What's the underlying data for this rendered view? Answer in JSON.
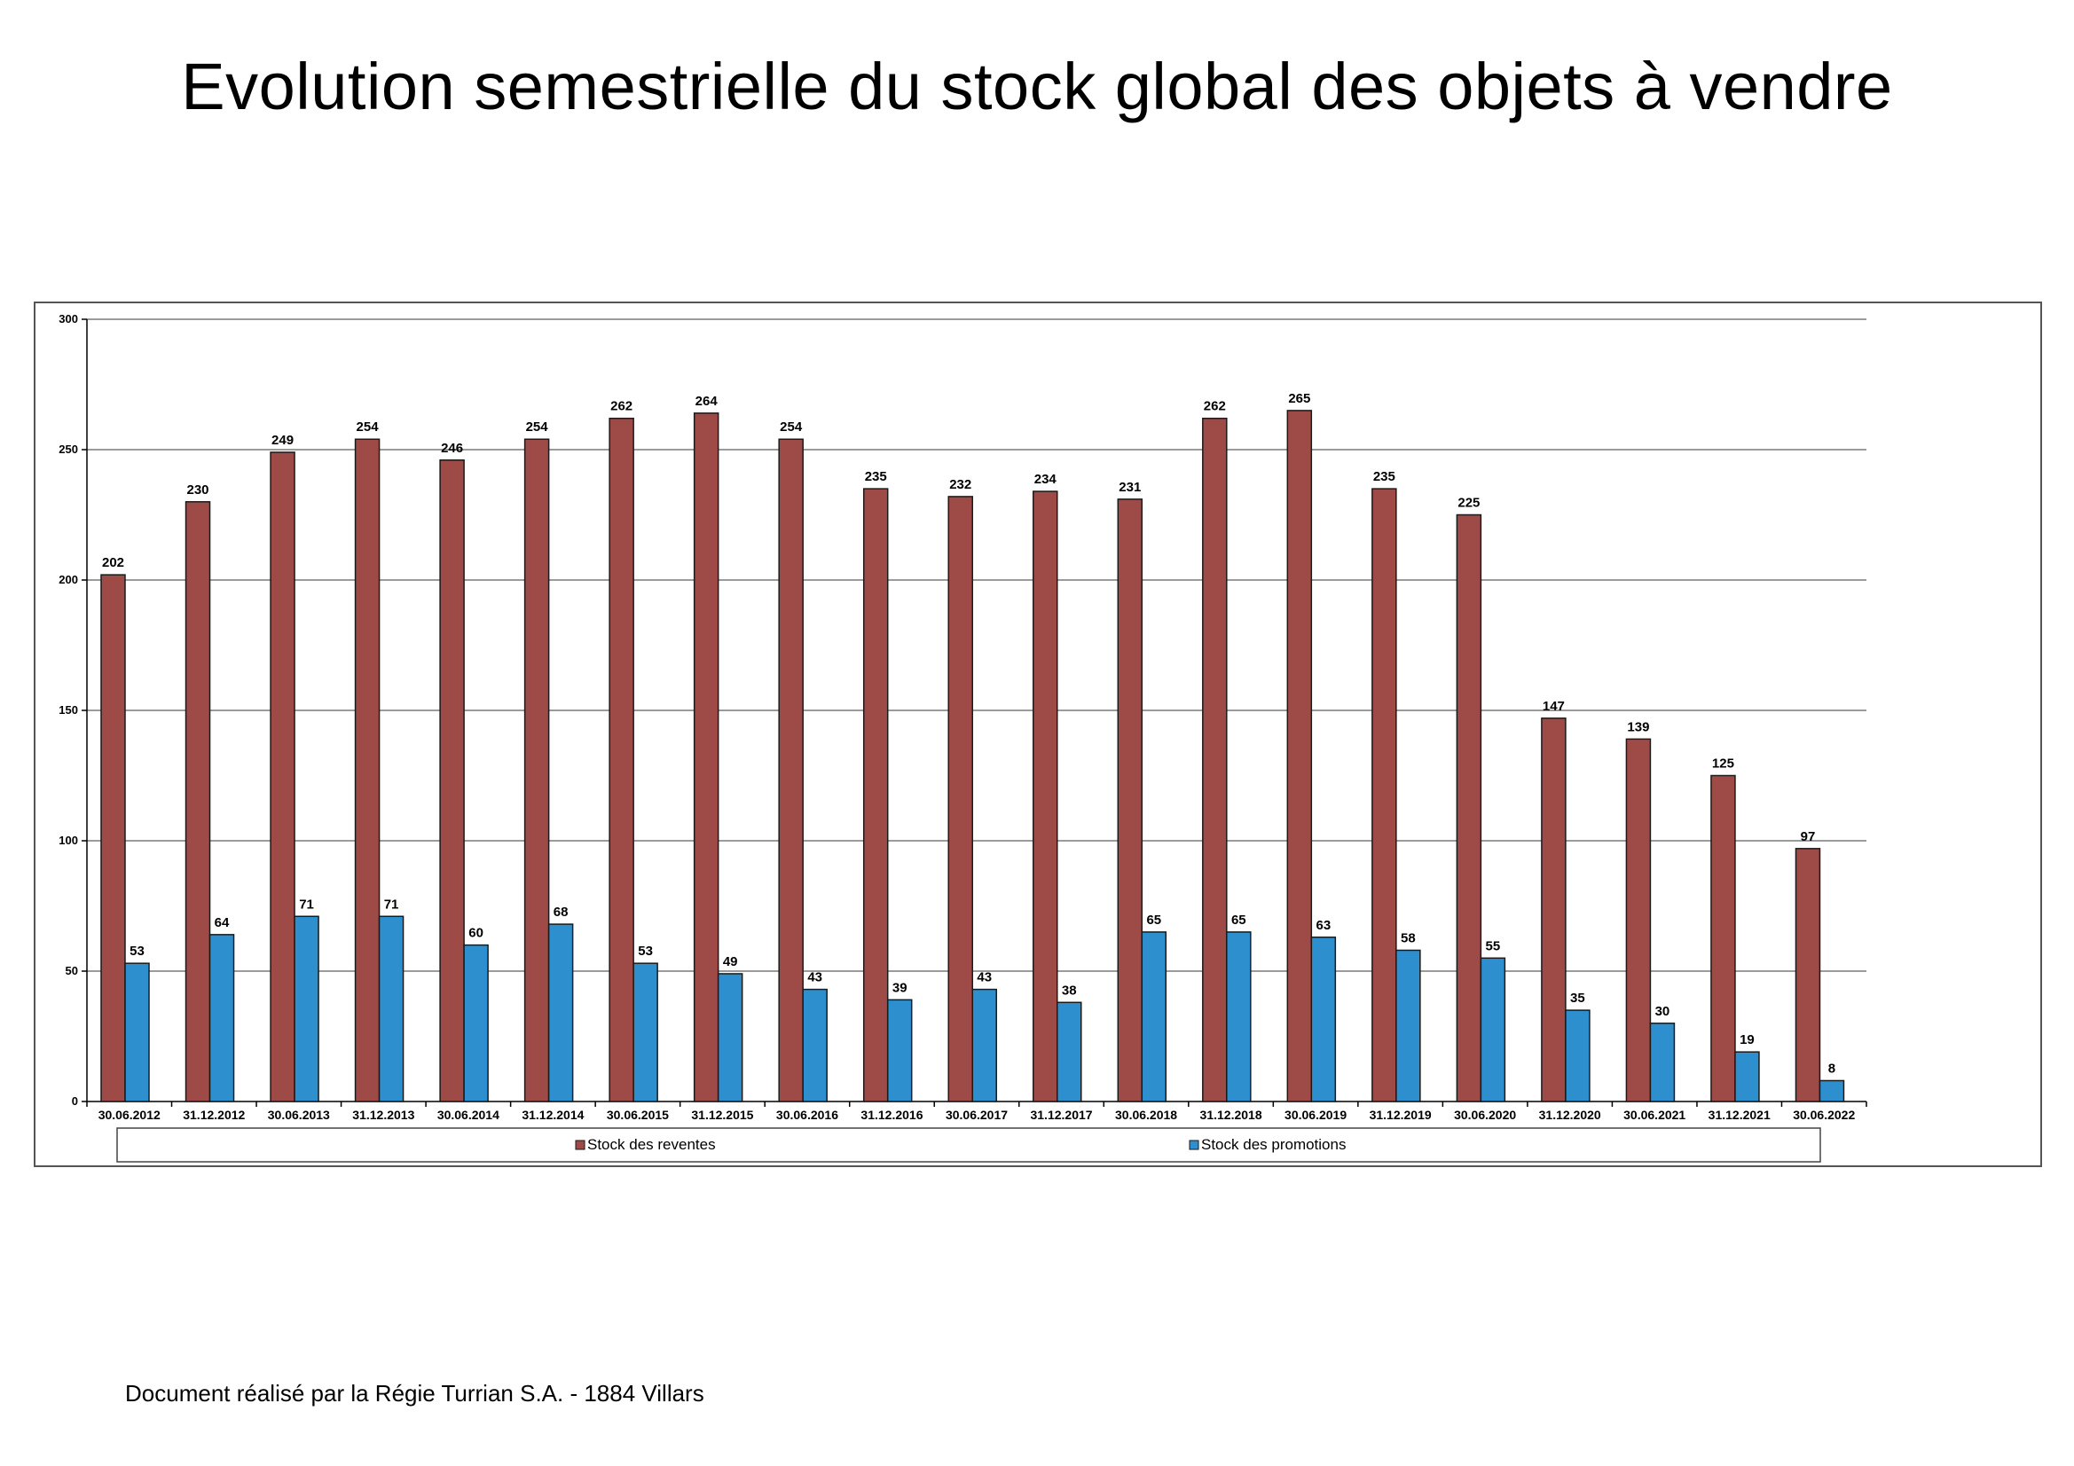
{
  "title": "Evolution semestrielle du stock global des objets à vendre",
  "footer": "Document réalisé par la Régie Turrian S.A. - 1884 Villars",
  "chart_data": {
    "type": "bar",
    "title": "Evolution semestrielle du stock global des objets à vendre",
    "xlabel": "",
    "ylabel": "",
    "ylim": [
      0,
      300
    ],
    "yticks": [
      0,
      50,
      100,
      150,
      200,
      250,
      300
    ],
    "grid": true,
    "legend_position": "bottom",
    "categories": [
      "30.06.2012",
      "31.12.2012",
      "30.06.2013",
      "31.12.2013",
      "30.06.2014",
      "31.12.2014",
      "30.06.2015",
      "31.12.2015",
      "30.06.2016",
      "31.12.2016",
      "30.06.2017",
      "31.12.2017",
      "30.06.2018",
      "31.12.2018",
      "30.06.2019",
      "31.12.2019",
      "30.06.2020",
      "31.12.2020",
      "30.06.2021",
      "31.12.2021",
      "30.06.2022"
    ],
    "series": [
      {
        "name": "Stock des reventes",
        "color": "#9e4a47",
        "values": [
          202,
          230,
          249,
          254,
          246,
          254,
          262,
          264,
          254,
          235,
          232,
          234,
          231,
          262,
          265,
          235,
          225,
          147,
          139,
          125,
          97
        ]
      },
      {
        "name": "Stock des promotions",
        "color": "#2e8fcf",
        "values": [
          53,
          64,
          71,
          71,
          60,
          68,
          53,
          49,
          43,
          39,
          43,
          38,
          65,
          65,
          63,
          58,
          55,
          35,
          30,
          19,
          8
        ]
      }
    ]
  }
}
